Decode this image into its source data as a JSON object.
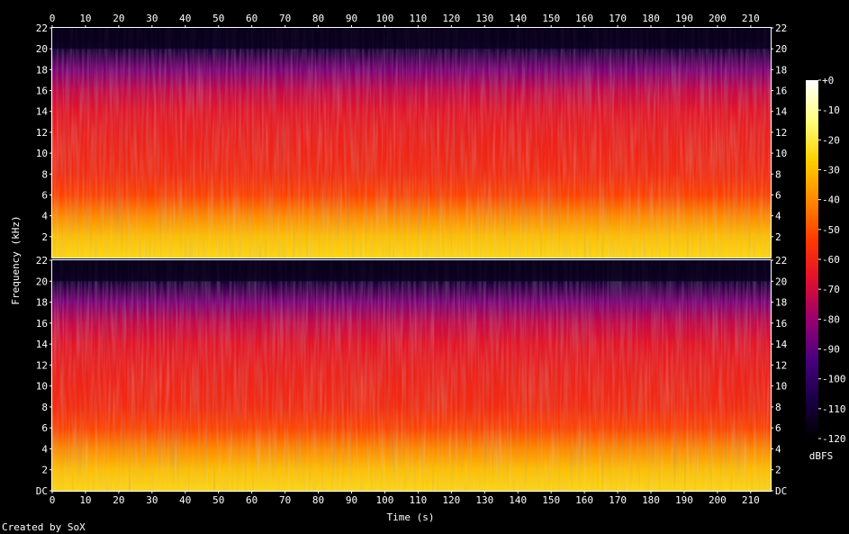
{
  "chart_data": {
    "type": "heatmap",
    "xlabel": "Time (s)",
    "ylabel": "Frequency (kHz)",
    "x_ticks": [
      "0",
      "10",
      "20",
      "30",
      "40",
      "50",
      "60",
      "70",
      "80",
      "90",
      "100",
      "110",
      "120",
      "130",
      "140",
      "150",
      "160",
      "170",
      "180",
      "190",
      "200",
      "210"
    ],
    "xlim": [
      0,
      216
    ],
    "channels": [
      {
        "y_ticks": [
          "2",
          "4",
          "6",
          "8",
          "10",
          "12",
          "14",
          "16",
          "18",
          "20",
          "22"
        ],
        "ylim": [
          0,
          22
        ]
      },
      {
        "y_ticks": [
          "DC",
          "2",
          "4",
          "6",
          "8",
          "10",
          "12",
          "14",
          "16",
          "18",
          "20",
          "22"
        ],
        "ylim": [
          0,
          22
        ]
      }
    ],
    "colorbar": {
      "label": "dBFS",
      "range": [
        -120,
        0
      ],
      "ticks": [
        "+0",
        "-10",
        "-20",
        "-30",
        "-40",
        "-50",
        "-60",
        "-70",
        "-80",
        "-90",
        "-100",
        "-110",
        "-120"
      ]
    },
    "spectral_profile": {
      "frequency_khz": [
        0,
        2,
        4,
        6,
        8,
        10,
        12,
        14,
        16,
        18,
        20,
        21,
        22
      ],
      "level_dbfs": [
        -25,
        -30,
        -40,
        -52,
        -58,
        -60,
        -62,
        -65,
        -72,
        -85,
        -110,
        -118,
        -120
      ]
    },
    "colors": {
      "scale": [
        "#000000",
        "#1a0047",
        "#4a0080",
        "#9a0070",
        "#e0102e",
        "#ff3a00",
        "#ff8a00",
        "#ffd000",
        "#ffff80",
        "#ffffff"
      ]
    }
  },
  "credit": "Created by SoX"
}
